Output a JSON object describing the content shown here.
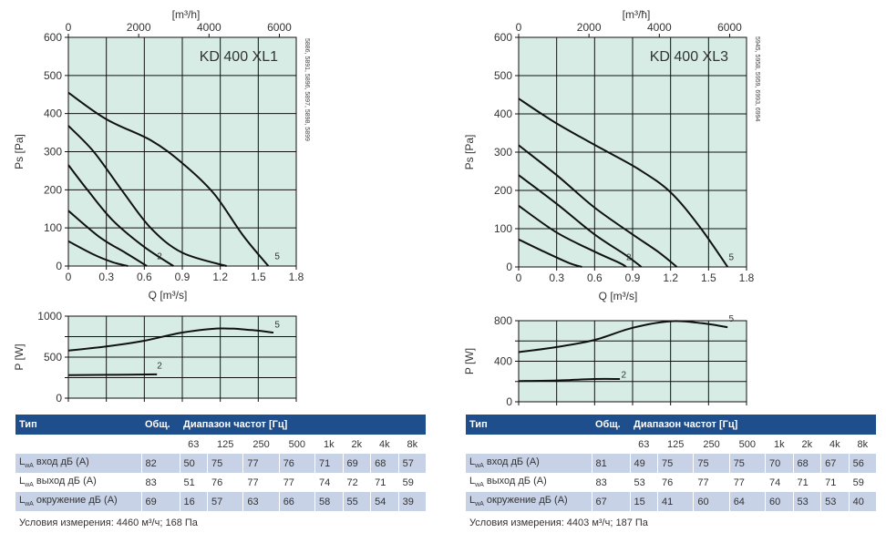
{
  "chart_data": [
    {
      "type": "line",
      "model": "KD 400 XL1",
      "title": "KD 400 XL1",
      "xlabel": "Q [m³/s]",
      "x2label": "[m³/h]",
      "ylabel": "Ps [Pa]",
      "xticks": [
        0,
        0.3,
        0.6,
        0.9,
        1.2,
        1.5,
        1.8
      ],
      "x2ticks": [
        0,
        2000,
        4000,
        6000
      ],
      "yticks": [
        0,
        100,
        200,
        300,
        400,
        500,
        600
      ],
      "xlim": [
        0,
        1.8
      ],
      "ylim": [
        0,
        600
      ],
      "grid": true,
      "side_label": "5886, 5891, 5896, 5897, 5898, 5899",
      "curve_labels": [
        {
          "text": "2",
          "x": 0.72,
          "y": 18
        },
        {
          "text": "5",
          "x": 1.65,
          "y": 18
        }
      ],
      "series": [
        {
          "points": [
            [
              0,
              65
            ],
            [
              0.2,
              30
            ],
            [
              0.35,
              10
            ],
            [
              0.47,
              0
            ]
          ]
        },
        {
          "points": [
            [
              0,
              145
            ],
            [
              0.25,
              75
            ],
            [
              0.45,
              35
            ],
            [
              0.62,
              0
            ]
          ]
        },
        {
          "points": [
            [
              0,
              265
            ],
            [
              0.15,
              200
            ],
            [
              0.35,
              120
            ],
            [
              0.6,
              50
            ],
            [
              0.83,
              0
            ]
          ]
        },
        {
          "points": [
            [
              0,
              368
            ],
            [
              0.2,
              300
            ],
            [
              0.42,
              200
            ],
            [
              0.65,
              100
            ],
            [
              0.9,
              35
            ],
            [
              1.25,
              0
            ]
          ]
        },
        {
          "points": [
            [
              0,
              455
            ],
            [
              0.3,
              385
            ],
            [
              0.65,
              330
            ],
            [
              0.9,
              270
            ],
            [
              1.15,
              190
            ],
            [
              1.38,
              80
            ],
            [
              1.58,
              0
            ]
          ]
        }
      ]
    },
    {
      "type": "line",
      "model": "KD 400 XL1",
      "ylabel": "P [W]",
      "yticks": [
        0,
        500,
        1000
      ],
      "xlim": [
        0,
        1.8
      ],
      "ylim": [
        0,
        1000
      ],
      "grid": true,
      "curve_labels": [
        {
          "text": "5",
          "x": 1.65,
          "y": 860
        },
        {
          "text": "2",
          "x": 0.72,
          "y": 360
        }
      ],
      "series": [
        {
          "points": [
            [
              0,
              580
            ],
            [
              0.3,
              630
            ],
            [
              0.6,
              700
            ],
            [
              0.9,
              800
            ],
            [
              1.2,
              850
            ],
            [
              1.45,
              830
            ],
            [
              1.62,
              800
            ]
          ]
        },
        {
          "points": [
            [
              0,
              280
            ],
            [
              0.35,
              285
            ],
            [
              0.7,
              290
            ]
          ]
        }
      ]
    },
    {
      "type": "line",
      "model": "KD 400 XL3",
      "title": "KD 400 XL3",
      "xlabel": "Q [m³/s]",
      "x2label": "[m³/ħ]",
      "ylabel": "Ps [Pa]",
      "xticks": [
        0,
        0.3,
        0.6,
        0.9,
        1.2,
        1.5,
        1.8
      ],
      "x2ticks": [
        0,
        2000,
        4000,
        6000
      ],
      "yticks": [
        0,
        100,
        200,
        300,
        400,
        500,
        600
      ],
      "xlim": [
        0,
        1.8
      ],
      "ylim": [
        0,
        600
      ],
      "grid": true,
      "side_label": "5945, 5958, 5959, 6993, 6994",
      "curve_labels": [
        {
          "text": "2",
          "x": 0.87,
          "y": 18
        },
        {
          "text": "5",
          "x": 1.68,
          "y": 18
        }
      ],
      "series": [
        {
          "points": [
            [
              0,
              72
            ],
            [
              0.2,
              40
            ],
            [
              0.4,
              10
            ],
            [
              0.5,
              0
            ]
          ]
        },
        {
          "points": [
            [
              0,
              160
            ],
            [
              0.3,
              90
            ],
            [
              0.6,
              40
            ],
            [
              0.8,
              10
            ],
            [
              0.85,
              0
            ]
          ]
        },
        {
          "points": [
            [
              0,
              240
            ],
            [
              0.3,
              165
            ],
            [
              0.6,
              85
            ],
            [
              0.85,
              30
            ],
            [
              0.97,
              0
            ]
          ]
        },
        {
          "points": [
            [
              0,
              318
            ],
            [
              0.3,
              240
            ],
            [
              0.6,
              155
            ],
            [
              0.9,
              85
            ],
            [
              1.1,
              40
            ],
            [
              1.25,
              0
            ]
          ]
        },
        {
          "points": [
            [
              0,
              440
            ],
            [
              0.3,
              375
            ],
            [
              0.65,
              310
            ],
            [
              0.95,
              255
            ],
            [
              1.2,
              195
            ],
            [
              1.43,
              105
            ],
            [
              1.65,
              0
            ]
          ]
        }
      ]
    },
    {
      "type": "line",
      "model": "KD 400 XL3",
      "ylabel": "P [W]",
      "yticks": [
        0,
        400,
        800
      ],
      "xlim": [
        0,
        1.8
      ],
      "ylim": [
        0,
        800
      ],
      "grid": true,
      "curve_labels": [
        {
          "text": "5",
          "x": 1.68,
          "y": 790
        },
        {
          "text": "2",
          "x": 0.83,
          "y": 240
        }
      ],
      "series": [
        {
          "points": [
            [
              0,
              490
            ],
            [
              0.3,
              540
            ],
            [
              0.6,
              610
            ],
            [
              0.9,
              730
            ],
            [
              1.2,
              795
            ],
            [
              1.45,
              775
            ],
            [
              1.65,
              735
            ]
          ]
        },
        {
          "points": [
            [
              0,
              205
            ],
            [
              0.3,
              210
            ],
            [
              0.6,
              225
            ],
            [
              0.8,
              225
            ]
          ]
        }
      ]
    }
  ],
  "tables": [
    {
      "header": {
        "type": "Тип",
        "total": "Общ.",
        "range": "Диапазон частот [Гц]"
      },
      "bands": [
        "63",
        "125",
        "250",
        "500",
        "1k",
        "2k",
        "4k",
        "8k"
      ],
      "rows": [
        {
          "lw": "L",
          "sub": "wA",
          "label": " вход дБ (А)",
          "total": "82",
          "values": [
            "50",
            "75",
            "77",
            "76",
            "71",
            "69",
            "68",
            "57"
          ]
        },
        {
          "lw": "L",
          "sub": "wA",
          "label": " выход дБ (А)",
          "total": "83",
          "values": [
            "51",
            "76",
            "77",
            "77",
            "74",
            "72",
            "71",
            "59"
          ]
        },
        {
          "lw": "L",
          "sub": "wA",
          "label": " окружение дБ (А)",
          "total": "69",
          "values": [
            "16",
            "57",
            "63",
            "66",
            "58",
            "55",
            "54",
            "39"
          ]
        }
      ],
      "condition": "Условия измерения: 4460 м³/ч; 168 Па"
    },
    {
      "header": {
        "type": "Тип",
        "total": "Общ.",
        "range": "Диапазон частот [Гц]"
      },
      "bands": [
        "63",
        "125",
        "250",
        "500",
        "1k",
        "2k",
        "4k",
        "8k"
      ],
      "rows": [
        {
          "lw": "L",
          "sub": "wA",
          "label": " вход дБ (А)",
          "total": "81",
          "values": [
            "49",
            "75",
            "75",
            "75",
            "70",
            "68",
            "67",
            "56"
          ]
        },
        {
          "lw": "L",
          "sub": "wA",
          "label": " выход дБ (А)",
          "total": "83",
          "values": [
            "53",
            "76",
            "77",
            "77",
            "74",
            "71",
            "71",
            "59"
          ]
        },
        {
          "lw": "L",
          "sub": "wA",
          "label": " окружение дБ (А)",
          "total": "67",
          "values": [
            "15",
            "41",
            "60",
            "64",
            "60",
            "53",
            "53",
            "40"
          ]
        }
      ],
      "condition": "Условия измерения: 4403 м³/ч; 187 Па"
    }
  ],
  "colors": {
    "plot_bg": "#d6ece5",
    "grid": "#111111",
    "curve": "#111111",
    "header": "#1f4e8c",
    "row_shade": "#c8d2e6"
  }
}
